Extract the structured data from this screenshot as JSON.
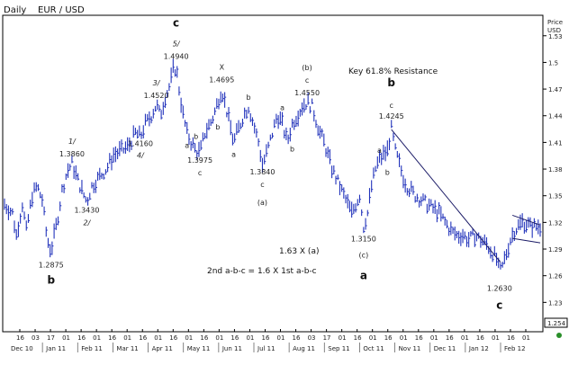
{
  "header": {
    "period": "Daily",
    "symbol": "EUR / USD"
  },
  "y_axis_title": [
    "Price",
    "USD"
  ],
  "last_price_box": "1.254",
  "notes": {
    "resistance": "Key 61.8% Resistance",
    "ratio": "1.63  X  (a)",
    "abc": "2nd  a-b-c  =  1.6  X 1st a-b-c"
  },
  "chart_data": {
    "type": "ohlc",
    "ylim": [
      1.2,
      1.55
    ],
    "ytick_values": [
      1.23,
      1.26,
      1.29,
      1.32,
      1.35,
      1.38,
      1.41,
      1.44,
      1.47,
      1.5,
      1.53
    ],
    "y_ticks": [
      "1.23",
      "1.26",
      "1.29",
      "1.32",
      "1.35",
      "1.38",
      "1.41",
      "1.44",
      "1.47",
      "1.5",
      "1.53"
    ],
    "day_ticks": [
      "16",
      "03",
      "17",
      "01",
      "16",
      "01",
      "16",
      "01",
      "16",
      "01",
      "16",
      "01",
      "16",
      "01",
      "16",
      "01",
      "16",
      "01",
      "16",
      "03",
      "17",
      "01",
      "16",
      "01",
      "16",
      "01",
      "16",
      "01",
      "16",
      "01",
      "16",
      "01",
      "16",
      "01"
    ],
    "months": [
      "Dec 10",
      "Jan 11",
      "Feb 11",
      "Mar 11",
      "Apr 11",
      "May 11",
      "Jun 11",
      "Jul 11",
      "Aug 11",
      "Sep 11",
      "Oct 11",
      "Nov 11",
      "Dec 11",
      "Jan 12",
      "Feb 12"
    ],
    "anchors": [
      [
        0,
        1.34
      ],
      [
        8,
        1.33
      ],
      [
        12,
        1.305
      ],
      [
        18,
        1.34
      ],
      [
        22,
        1.31
      ],
      [
        28,
        1.35
      ],
      [
        33,
        1.36
      ],
      [
        38,
        1.345
      ],
      [
        43,
        1.3
      ],
      [
        47,
        1.2875
      ],
      [
        53,
        1.32
      ],
      [
        58,
        1.355
      ],
      [
        63,
        1.376
      ],
      [
        68,
        1.386
      ],
      [
        73,
        1.37
      ],
      [
        78,
        1.355
      ],
      [
        83,
        1.343
      ],
      [
        88,
        1.36
      ],
      [
        95,
        1.37
      ],
      [
        103,
        1.38
      ],
      [
        110,
        1.395
      ],
      [
        118,
        1.4
      ],
      [
        125,
        1.405
      ],
      [
        132,
        1.42
      ],
      [
        137,
        1.416
      ],
      [
        142,
        1.43
      ],
      [
        148,
        1.44
      ],
      [
        153,
        1.452
      ],
      [
        157,
        1.44
      ],
      [
        162,
        1.46
      ],
      [
        167,
        1.475
      ],
      [
        170,
        1.49
      ],
      [
        173,
        1.494
      ],
      [
        176,
        1.47
      ],
      [
        180,
        1.44
      ],
      [
        184,
        1.42
      ],
      [
        188,
        1.41
      ],
      [
        193,
        1.4
      ],
      [
        197,
        1.3975
      ],
      [
        202,
        1.42
      ],
      [
        207,
        1.43
      ],
      [
        211,
        1.44
      ],
      [
        215,
        1.455
      ],
      [
        219,
        1.4695
      ],
      [
        223,
        1.45
      ],
      [
        227,
        1.43
      ],
      [
        231,
        1.41
      ],
      [
        236,
        1.425
      ],
      [
        241,
        1.44
      ],
      [
        246,
        1.45
      ],
      [
        251,
        1.43
      ],
      [
        256,
        1.41
      ],
      [
        260,
        1.384
      ],
      [
        265,
        1.4
      ],
      [
        270,
        1.42
      ],
      [
        275,
        1.44
      ],
      [
        280,
        1.43
      ],
      [
        285,
        1.41
      ],
      [
        290,
        1.43
      ],
      [
        295,
        1.44
      ],
      [
        300,
        1.45
      ],
      [
        305,
        1.455
      ],
      [
        310,
        1.45
      ],
      [
        314,
        1.435
      ],
      [
        318,
        1.42
      ],
      [
        322,
        1.41
      ],
      [
        326,
        1.395
      ],
      [
        330,
        1.38
      ],
      [
        334,
        1.37
      ],
      [
        338,
        1.36
      ],
      [
        342,
        1.35
      ],
      [
        346,
        1.34
      ],
      [
        350,
        1.33
      ],
      [
        354,
        1.34
      ],
      [
        358,
        1.35
      ],
      [
        362,
        1.315
      ],
      [
        366,
        1.33
      ],
      [
        370,
        1.36
      ],
      [
        374,
        1.38
      ],
      [
        378,
        1.39
      ],
      [
        382,
        1.395
      ],
      [
        386,
        1.4
      ],
      [
        390,
        1.4245
      ],
      [
        394,
        1.4
      ],
      [
        398,
        1.385
      ],
      [
        402,
        1.37
      ],
      [
        406,
        1.36
      ],
      [
        410,
        1.355
      ],
      [
        414,
        1.35
      ],
      [
        420,
        1.345
      ],
      [
        426,
        1.34
      ],
      [
        432,
        1.335
      ],
      [
        438,
        1.33
      ],
      [
        444,
        1.32
      ],
      [
        450,
        1.31
      ],
      [
        456,
        1.305
      ],
      [
        462,
        1.305
      ],
      [
        468,
        1.3
      ],
      [
        474,
        1.305
      ],
      [
        480,
        1.3
      ],
      [
        486,
        1.295
      ],
      [
        492,
        1.285
      ],
      [
        496,
        1.278
      ],
      [
        499,
        1.263
      ],
      [
        502,
        1.27
      ],
      [
        506,
        1.285
      ],
      [
        510,
        1.3
      ],
      [
        514,
        1.31
      ],
      [
        518,
        1.315
      ],
      [
        522,
        1.32
      ],
      [
        526,
        1.318
      ],
      [
        530,
        1.315
      ]
    ],
    "wave_labels": [
      {
        "text": "1.2875",
        "x": 47,
        "y": 1.2875,
        "dy": 18
      },
      {
        "text": "b",
        "x": 47,
        "y": 1.2875,
        "dy": 36,
        "big": true
      },
      {
        "text": "1.3860",
        "x": 68,
        "y": 1.386,
        "dy": -8
      },
      {
        "text": "1/",
        "x": 68,
        "y": 1.386,
        "dy": -22,
        "ital": true
      },
      {
        "text": "1.3430",
        "x": 83,
        "y": 1.343,
        "dy": 12
      },
      {
        "text": "2/",
        "x": 83,
        "y": 1.343,
        "dy": 26,
        "ital": true
      },
      {
        "text": "1.4520",
        "x": 153,
        "y": 1.452,
        "dy": -8
      },
      {
        "text": "3/",
        "x": 153,
        "y": 1.452,
        "dy": -22,
        "ital": true
      },
      {
        "text": "1.4160",
        "x": 137,
        "y": 1.416,
        "dy": 10
      },
      {
        "text": "4/",
        "x": 137,
        "y": 1.416,
        "dy": 23,
        "ital": true
      },
      {
        "text": "1.4940",
        "x": 173,
        "y": 1.494,
        "dy": -10
      },
      {
        "text": "5/",
        "x": 173,
        "y": 1.494,
        "dy": -24,
        "ital": true
      },
      {
        "text": "c",
        "x": 173,
        "y": 1.494,
        "dy": -46,
        "big": true
      },
      {
        "text": "a",
        "x": 184,
        "y": 1.42,
        "dy": 16
      },
      {
        "text": "b",
        "x": 193,
        "y": 1.4,
        "dy": -14
      },
      {
        "text": "1.3975",
        "x": 197,
        "y": 1.3975,
        "dy": 10
      },
      {
        "text": "c",
        "x": 197,
        "y": 1.3975,
        "dy": 24
      },
      {
        "text": "X",
        "x": 219,
        "y": 1.4695,
        "dy": -22
      },
      {
        "text": "1.4695",
        "x": 219,
        "y": 1.4695,
        "dy": -8
      },
      {
        "text": "b",
        "x": 215,
        "y": 1.455,
        "dy": 30
      },
      {
        "text": "a",
        "x": 231,
        "y": 1.41,
        "dy": 16
      },
      {
        "text": "b",
        "x": 246,
        "y": 1.45,
        "dy": -8
      },
      {
        "text": "1.3840",
        "x": 260,
        "y": 1.384,
        "dy": 10
      },
      {
        "text": "c",
        "x": 260,
        "y": 1.384,
        "dy": 24
      },
      {
        "text": "(a)",
        "x": 260,
        "y": 1.384,
        "dy": 44
      },
      {
        "text": "a",
        "x": 280,
        "y": 1.43,
        "dy": -16
      },
      {
        "text": "b",
        "x": 290,
        "y": 1.43,
        "dy": 30
      },
      {
        "text": "(b)",
        "x": 305,
        "y": 1.455,
        "dy": -36
      },
      {
        "text": "c",
        "x": 305,
        "y": 1.455,
        "dy": -22
      },
      {
        "text": "1.4550",
        "x": 305,
        "y": 1.455,
        "dy": -8
      },
      {
        "text": "1.3150",
        "x": 362,
        "y": 1.315,
        "dy": 16
      },
      {
        "text": "(c)",
        "x": 362,
        "y": 1.315,
        "dy": 34
      },
      {
        "text": "a",
        "x": 362,
        "y": 1.315,
        "dy": 58,
        "big": true
      },
      {
        "text": "a",
        "x": 378,
        "y": 1.39,
        "dy": -8
      },
      {
        "text": "b",
        "x": 386,
        "y": 1.4,
        "dy": 26
      },
      {
        "text": "b",
        "x": 390,
        "y": 1.4245,
        "dy": -48,
        "big": true
      },
      {
        "text": "c",
        "x": 390,
        "y": 1.4245,
        "dy": -24
      },
      {
        "text": "1.4245",
        "x": 390,
        "y": 1.4245,
        "dy": -12
      },
      {
        "text": "1.2630",
        "x": 499,
        "y": 1.263,
        "dy": 20
      },
      {
        "text": "c",
        "x": 499,
        "y": 1.263,
        "dy": 40,
        "big": true
      }
    ],
    "trendline": {
      "from": [
        390,
        1.4245
      ],
      "to": [
        500,
        1.275
      ]
    },
    "triangle": {
      "upper": [
        [
          512,
          1.328
        ],
        [
          540,
          1.317
        ]
      ],
      "lower": [
        [
          512,
          1.302
        ],
        [
          540,
          1.297
        ]
      ]
    }
  }
}
